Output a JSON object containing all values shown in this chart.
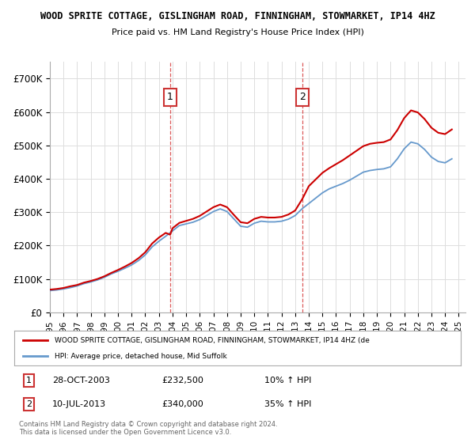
{
  "title": "WOOD SPRITE COTTAGE, GISLINGHAM ROAD, FINNINGHAM, STOWMARKET, IP14 4HZ",
  "subtitle": "Price paid vs. HM Land Registry's House Price Index (HPI)",
  "xlim_start": 1995.0,
  "xlim_end": 2025.5,
  "ylim_min": 0,
  "ylim_max": 750000,
  "yticks": [
    0,
    100000,
    200000,
    300000,
    400000,
    500000,
    600000,
    700000
  ],
  "ytick_labels": [
    "£0",
    "£100K",
    "£200K",
    "£300K",
    "£400K",
    "£500K",
    "£600K",
    "£700K"
  ],
  "background_color": "#ffffff",
  "plot_bg_color": "#ffffff",
  "grid_color": "#dddddd",
  "red_color": "#cc0000",
  "blue_color": "#6699cc",
  "purchase1_x": 2003.83,
  "purchase1_y": 232500,
  "purchase1_label": "1",
  "purchase2_x": 2013.53,
  "purchase2_y": 340000,
  "purchase2_label": "2",
  "vline1_x": 2003.83,
  "vline2_x": 2013.53,
  "legend_red_text": "WOOD SPRITE COTTAGE, GISLINGHAM ROAD, FINNINGHAM, STOWMARKET, IP14 4HZ (de",
  "legend_blue_text": "HPI: Average price, detached house, Mid Suffolk",
  "table_row1": [
    "1",
    "28-OCT-2003",
    "£232,500",
    "10% ↑ HPI"
  ],
  "table_row2": [
    "2",
    "10-JUL-2013",
    "£340,000",
    "35% ↑ HPI"
  ],
  "footnote": "Contains HM Land Registry data © Crown copyright and database right 2024.\nThis data is licensed under the Open Government Licence v3.0.",
  "xticks": [
    1995,
    1996,
    1997,
    1998,
    1999,
    2000,
    2001,
    2002,
    2003,
    2004,
    2005,
    2006,
    2007,
    2008,
    2009,
    2010,
    2011,
    2012,
    2013,
    2014,
    2015,
    2016,
    2017,
    2018,
    2019,
    2020,
    2021,
    2022,
    2023,
    2024,
    2025
  ],
  "hpi_data_x": [
    1995.0,
    1995.5,
    1996.0,
    1996.5,
    1997.0,
    1997.5,
    1998.0,
    1998.5,
    1999.0,
    1999.5,
    2000.0,
    2000.5,
    2001.0,
    2001.5,
    2002.0,
    2002.5,
    2003.0,
    2003.5,
    2004.0,
    2004.5,
    2005.0,
    2005.5,
    2006.0,
    2006.5,
    2007.0,
    2007.5,
    2008.0,
    2008.5,
    2009.0,
    2009.5,
    2010.0,
    2010.5,
    2011.0,
    2011.5,
    2012.0,
    2012.5,
    2013.0,
    2013.5,
    2014.0,
    2014.5,
    2015.0,
    2015.5,
    2016.0,
    2016.5,
    2017.0,
    2017.5,
    2018.0,
    2018.5,
    2019.0,
    2019.5,
    2020.0,
    2020.5,
    2021.0,
    2021.5,
    2022.0,
    2022.5,
    2023.0,
    2023.5,
    2024.0,
    2024.5
  ],
  "hpi_data_y": [
    65000,
    67000,
    70000,
    74000,
    79000,
    86000,
    91000,
    97000,
    105000,
    115000,
    123000,
    132000,
    142000,
    155000,
    172000,
    196000,
    213000,
    228000,
    244000,
    260000,
    265000,
    270000,
    278000,
    290000,
    302000,
    310000,
    302000,
    280000,
    258000,
    255000,
    267000,
    273000,
    271000,
    271000,
    273000,
    279000,
    290000,
    310000,
    326000,
    342000,
    358000,
    370000,
    378000,
    386000,
    396000,
    408000,
    420000,
    425000,
    428000,
    430000,
    436000,
    460000,
    490000,
    510000,
    505000,
    488000,
    465000,
    452000,
    448000,
    460000
  ],
  "red_data_x": [
    1995.0,
    1995.5,
    1996.0,
    1996.5,
    1997.0,
    1997.5,
    1998.0,
    1998.5,
    1999.0,
    1999.5,
    2000.0,
    2000.5,
    2001.0,
    2001.5,
    2002.0,
    2002.5,
    2003.0,
    2003.5,
    2003.83,
    2003.83,
    2004.0,
    2004.5,
    2005.0,
    2005.5,
    2006.0,
    2006.5,
    2007.0,
    2007.5,
    2008.0,
    2008.5,
    2009.0,
    2009.5,
    2010.0,
    2010.5,
    2011.0,
    2011.5,
    2012.0,
    2012.5,
    2013.0,
    2013.53,
    2013.53,
    2014.0,
    2014.5,
    2015.0,
    2015.5,
    2016.0,
    2016.5,
    2017.0,
    2017.5,
    2018.0,
    2018.5,
    2019.0,
    2019.5,
    2020.0,
    2020.5,
    2021.0,
    2021.5,
    2022.0,
    2022.5,
    2023.0,
    2023.5,
    2024.0,
    2024.5
  ],
  "red_data_y": [
    68000,
    70000,
    73000,
    78000,
    82000,
    89000,
    94000,
    100000,
    108000,
    118000,
    127000,
    137000,
    148000,
    162000,
    180000,
    206000,
    224000,
    238000,
    232500,
    232500,
    252000,
    268000,
    274000,
    280000,
    289000,
    302000,
    315000,
    323000,
    315000,
    292000,
    270000,
    267000,
    280000,
    286000,
    284000,
    284000,
    286000,
    293000,
    305000,
    340000,
    340000,
    378000,
    398000,
    418000,
    432000,
    444000,
    456000,
    470000,
    484000,
    498000,
    505000,
    508000,
    510000,
    518000,
    546000,
    582000,
    605000,
    599000,
    579000,
    553000,
    538000,
    534000,
    548000
  ]
}
